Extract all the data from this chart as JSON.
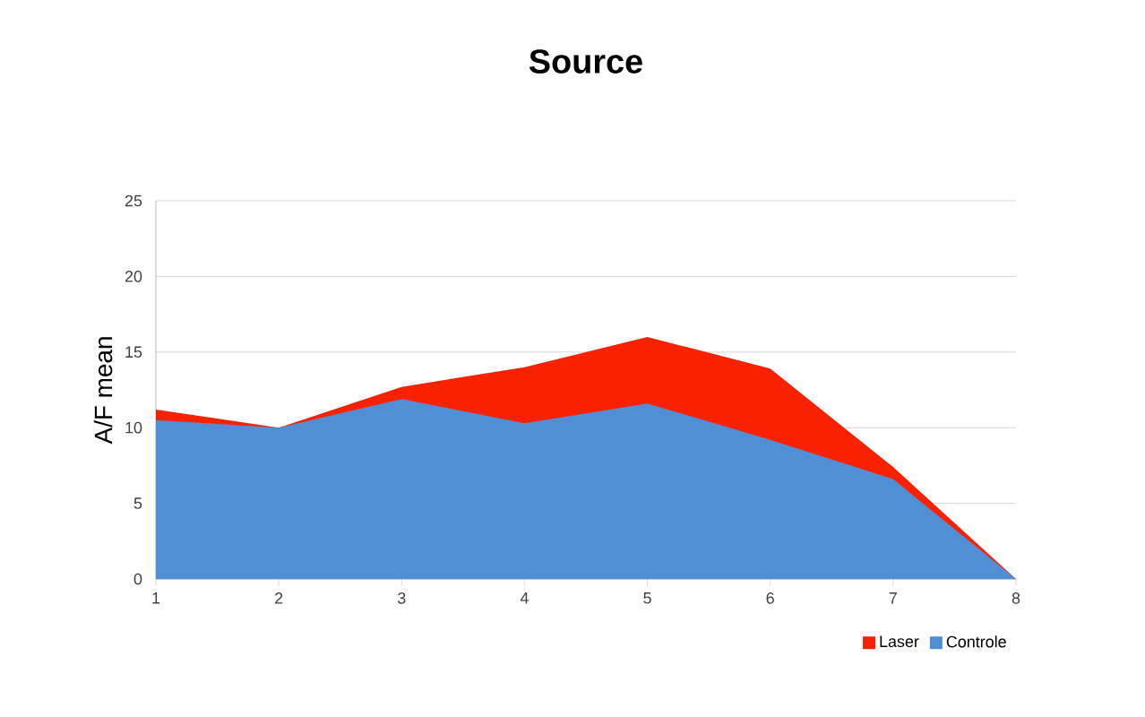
{
  "chart_data": {
    "type": "area",
    "title": "Source",
    "ylabel": "A/F mean",
    "x": [
      1,
      2,
      3,
      4,
      5,
      6,
      7,
      8
    ],
    "series": [
      {
        "name": "Laser",
        "color": "#fa2100",
        "values": [
          11.2,
          10.0,
          12.7,
          14.0,
          16.0,
          13.9,
          7.4,
          0
        ]
      },
      {
        "name": "Controle",
        "color": "#508fd6",
        "values": [
          10.5,
          10.0,
          11.9,
          10.3,
          11.6,
          9.2,
          6.6,
          0
        ]
      }
    ],
    "xlim": [
      1,
      8
    ],
    "xticks": [
      1,
      2,
      3,
      4,
      5,
      6,
      7,
      8
    ],
    "ylim": [
      0,
      25
    ],
    "yticks": [
      0,
      5,
      10,
      15,
      20,
      25
    ],
    "grid": "y",
    "legend": "bottom right"
  }
}
